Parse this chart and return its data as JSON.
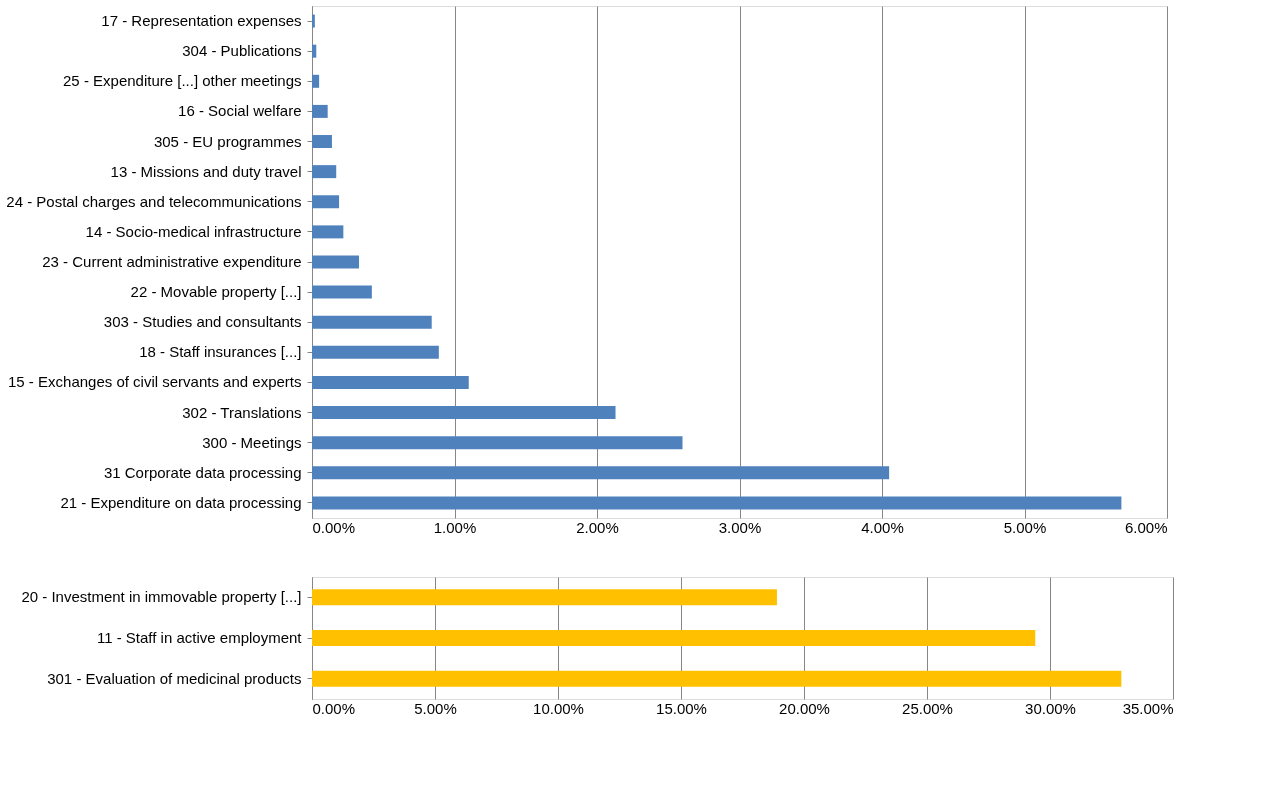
{
  "chart_data": [
    {
      "type": "bar",
      "orientation": "horizontal",
      "grid": "x",
      "color": "#4f81bd",
      "categories": [
        "17 - Representation expenses",
        "304 - Publications",
        "25 - Expenditure [...] other meetings",
        "16 - Social welfare",
        "305 - EU programmes",
        "13 - Missions and duty travel",
        "24 - Postal charges and telecommunications",
        "14 - Socio-medical infrastructure",
        "23 - Current administrative expenditure",
        "22 - Movable property [...]",
        "303 - Studies and consultants",
        "18 - Staff insurances [...]",
        "15 - Exchanges of civil servants and experts",
        "302 - Translations",
        "300 - Meetings",
        "31 Corporate data processing",
        "21 - Expenditure on data processing"
      ],
      "values": [
        0.02,
        0.03,
        0.05,
        0.11,
        0.14,
        0.17,
        0.19,
        0.22,
        0.33,
        0.42,
        0.84,
        0.89,
        1.1,
        2.13,
        2.6,
        4.05,
        5.68
      ],
      "xlim": [
        0,
        6
      ],
      "xticks": [
        {
          "value": 0,
          "label": "0.00%"
        },
        {
          "value": 1,
          "label": "1.00%"
        },
        {
          "value": 2,
          "label": "2.00%"
        },
        {
          "value": 3,
          "label": "3.00%"
        },
        {
          "value": 4,
          "label": "4.00%"
        },
        {
          "value": 5,
          "label": "5.00%"
        },
        {
          "value": 6,
          "label": "6.00%"
        }
      ]
    },
    {
      "type": "bar",
      "orientation": "horizontal",
      "grid": "x",
      "color": "#ffc000",
      "categories": [
        "20 - Investment in immovable property [...]",
        "11 - Staff in active employment",
        "301 - Evaluation of medicinal products"
      ],
      "values": [
        18.9,
        29.4,
        32.9
      ],
      "xlim": [
        0,
        35
      ],
      "xticks": [
        {
          "value": 0,
          "label": "0.00%"
        },
        {
          "value": 5,
          "label": "5.00%"
        },
        {
          "value": 10,
          "label": "10.00%"
        },
        {
          "value": 15,
          "label": "15.00%"
        },
        {
          "value": 20,
          "label": "20.00%"
        },
        {
          "value": 25,
          "label": "25.00%"
        },
        {
          "value": 30,
          "label": "30.00%"
        },
        {
          "value": 35,
          "label": "35.00%"
        }
      ]
    }
  ]
}
